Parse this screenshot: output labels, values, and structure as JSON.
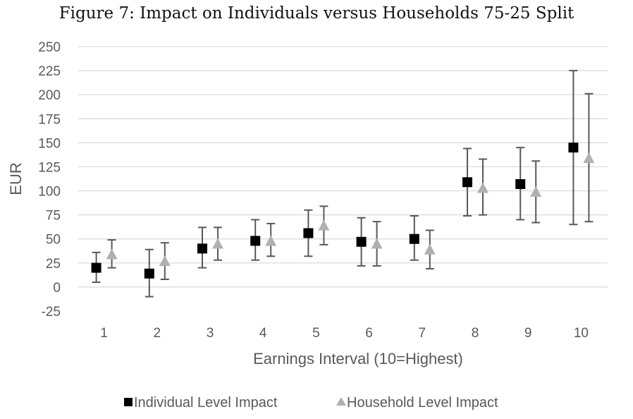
{
  "title": "Figure 7: Impact on Individuals versus Households 75-25 Split",
  "chart_data": {
    "type": "scatter",
    "xlabel": "Earnings Interval (10=Highest)",
    "ylabel": "EUR",
    "ylim": [
      -25,
      250
    ],
    "yticks": [
      -25,
      0,
      25,
      50,
      75,
      100,
      125,
      150,
      175,
      200,
      225,
      250
    ],
    "categories": [
      "1",
      "2",
      "3",
      "4",
      "5",
      "6",
      "7",
      "8",
      "9",
      "10"
    ],
    "grid": true,
    "legend_position": "bottom",
    "series": [
      {
        "name": "Individual Level Impact",
        "marker": "square",
        "color": "#000000",
        "values": [
          20,
          14,
          40,
          48,
          56,
          47,
          50,
          109,
          107,
          145
        ],
        "err_low": [
          5,
          -10,
          20,
          28,
          32,
          22,
          28,
          74,
          70,
          65
        ],
        "err_high": [
          36,
          39,
          62,
          70,
          80,
          72,
          74,
          144,
          145,
          225
        ]
      },
      {
        "name": "Household Level Impact",
        "marker": "triangle",
        "color": "#b0b0b0",
        "values": [
          34,
          27,
          45,
          48,
          64,
          45,
          39,
          103,
          99,
          134
        ],
        "err_low": [
          20,
          8,
          28,
          32,
          44,
          22,
          19,
          75,
          67,
          68
        ],
        "err_high": [
          49,
          46,
          62,
          66,
          84,
          68,
          59,
          133,
          131,
          201
        ]
      }
    ]
  }
}
